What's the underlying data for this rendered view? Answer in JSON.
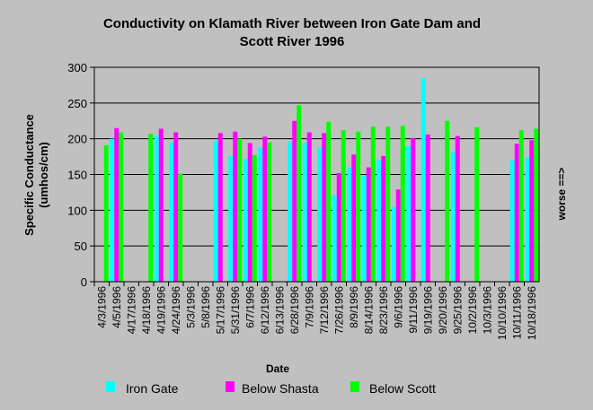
{
  "chart_data": {
    "type": "bar",
    "title_lines": [
      "Conductivity on Klamath River between Iron Gate Dam and",
      "Scott River 1996"
    ],
    "xlabel": "Date",
    "ylabel_lines": [
      "Specific Conductance",
      "(umhos/cm)"
    ],
    "right_label": "worse ==>",
    "ylim": [
      0,
      300
    ],
    "yticks": [
      0,
      50,
      100,
      150,
      200,
      250,
      300
    ],
    "grid": true,
    "legend_position": "bottom",
    "categories": [
      "4/3/1996",
      "4/5/1996",
      "4/17/1996",
      "4/18/1996",
      "4/19/1996",
      "4/24/1996",
      "5/3/1996",
      "5/8/1996",
      "5/17/1996",
      "5/31/1996",
      "6/7/1996",
      "6/12/1996",
      "6/13/1996",
      "6/28/1996",
      "7/9/1996",
      "7/12/1996",
      "7/26/1996",
      "8/9/1996",
      "8/14/1996",
      "8/23/1996",
      "9/6/1996",
      "9/11/1996",
      "9/19/1996",
      "9/20/1996",
      "9/25/1996",
      "10/2/1996",
      "10/3/1996",
      "10/10/1996",
      "10/11/1996",
      "10/18/1996"
    ],
    "series": [
      {
        "name": "Iron Gate",
        "color": "#00ffff",
        "values": [
          null,
          200,
          null,
          null,
          204,
          195,
          null,
          null,
          197,
          176,
          172,
          188,
          null,
          196,
          195,
          188,
          121,
          160,
          149,
          170,
          105,
          190,
          285,
          null,
          182,
          null,
          null,
          null,
          170,
          174
        ]
      },
      {
        "name": "Below Shasta",
        "color": "#ff00ff",
        "values": [
          null,
          215,
          null,
          null,
          214,
          209,
          null,
          null,
          208,
          210,
          194,
          203,
          null,
          225,
          209,
          208,
          152,
          178,
          160,
          176,
          129,
          201,
          206,
          null,
          204,
          null,
          null,
          null,
          193,
          198
        ]
      },
      {
        "name": "Below Scott",
        "color": "#00ff00",
        "values": [
          191,
          209,
          null,
          207,
          null,
          151,
          null,
          null,
          null,
          200,
          177,
          195,
          null,
          247,
          null,
          224,
          212,
          210,
          217,
          217,
          218,
          null,
          null,
          225,
          null,
          216,
          null,
          null,
          212,
          214
        ]
      }
    ]
  }
}
